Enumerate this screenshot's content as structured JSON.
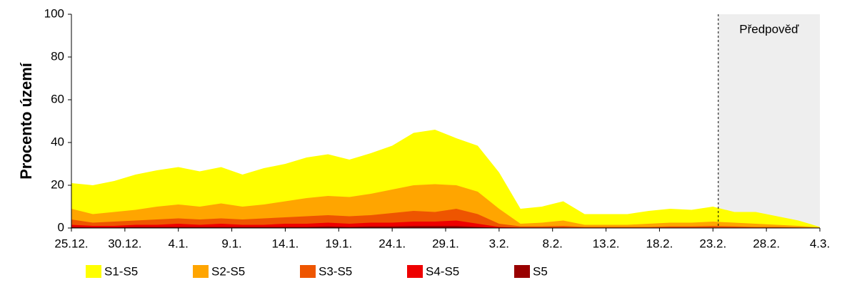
{
  "chart_data": {
    "type": "area",
    "ylabel": "Procento území",
    "forecast_label": "Předpověď",
    "forecast_start": 60.5,
    "xlim": [
      0,
      70
    ],
    "ylim": [
      0,
      100
    ],
    "yticks": [
      0,
      20,
      40,
      60,
      80,
      100
    ],
    "xticks": [
      {
        "value": 0,
        "label": "25.12."
      },
      {
        "value": 5,
        "label": "30.12."
      },
      {
        "value": 10,
        "label": "4.1."
      },
      {
        "value": 15,
        "label": "9.1."
      },
      {
        "value": 20,
        "label": "14.1."
      },
      {
        "value": 25,
        "label": "19.1."
      },
      {
        "value": 30,
        "label": "24.1."
      },
      {
        "value": 35,
        "label": "29.1."
      },
      {
        "value": 40,
        "label": "3.2."
      },
      {
        "value": 45,
        "label": "8.2."
      },
      {
        "value": 50,
        "label": "13.2."
      },
      {
        "value": 55,
        "label": "18.2."
      },
      {
        "value": 60,
        "label": "23.2."
      },
      {
        "value": 65,
        "label": "28.2."
      },
      {
        "value": 70,
        "label": "4.3."
      }
    ],
    "x": [
      0,
      2,
      4,
      6,
      8,
      10,
      12,
      14,
      16,
      18,
      20,
      22,
      24,
      26,
      28,
      30,
      32,
      34,
      36,
      38,
      40,
      42,
      44,
      46,
      48,
      50,
      52,
      54,
      56,
      58,
      60,
      62,
      64,
      66,
      68,
      70
    ],
    "series": [
      {
        "name": "S1-S5",
        "color": "#ffff00",
        "values": [
          21,
          20,
          22,
          25,
          27,
          28.5,
          26.5,
          28.5,
          25,
          28,
          30,
          33,
          34.5,
          32,
          35,
          38.5,
          44.5,
          46,
          42,
          38.5,
          26,
          9,
          10,
          12.5,
          6.5,
          6.5,
          6.5,
          8,
          9,
          8.5,
          10,
          7.5,
          7.5,
          5.5,
          3.5,
          0.5
        ]
      },
      {
        "name": "S2-S5",
        "color": "#ffa500",
        "values": [
          9,
          6.5,
          7.5,
          8.5,
          10,
          11,
          10,
          11.5,
          10,
          11,
          12.5,
          14,
          15,
          14.5,
          16,
          18,
          20,
          20.5,
          20,
          17,
          9,
          2,
          2.5,
          3.5,
          1.5,
          1.5,
          1.5,
          2,
          2.5,
          2.5,
          3,
          2.5,
          2,
          1.5,
          1,
          0.3
        ]
      },
      {
        "name": "S3-S5",
        "color": "#ee5500",
        "values": [
          4,
          2.5,
          3,
          3.5,
          4,
          4.5,
          4,
          4.5,
          4,
          4.5,
          5,
          5.5,
          6,
          5.5,
          6,
          7,
          8,
          7.5,
          9,
          6.5,
          2,
          0.8,
          0.8,
          1,
          0.5,
          0.5,
          0.5,
          0.5,
          0.8,
          0.8,
          1,
          0.8,
          0.5,
          0.5,
          0.3,
          0.1
        ]
      },
      {
        "name": "S4-S5",
        "color": "#ee0000",
        "values": [
          1.5,
          1,
          1,
          1.5,
          1.5,
          2,
          1.5,
          2,
          1.5,
          1.5,
          2,
          2,
          2.5,
          2,
          2.5,
          2.5,
          3,
          3,
          3.5,
          2,
          0.5,
          0.2,
          0.2,
          0.2,
          0.1,
          0.1,
          0.1,
          0.1,
          0.2,
          0.2,
          0.2,
          0.2,
          0.1,
          0.1,
          0.1,
          0
        ]
      },
      {
        "name": "S5",
        "color": "#990000",
        "values": [
          0.5,
          0.3,
          0.3,
          0.5,
          0.5,
          0.5,
          0.5,
          0.5,
          0.5,
          0.5,
          0.5,
          0.5,
          0.8,
          0.5,
          0.8,
          0.8,
          1,
          1,
          1,
          0.5,
          0.1,
          0,
          0,
          0,
          0,
          0,
          0,
          0,
          0,
          0,
          0,
          0,
          0,
          0,
          0,
          0
        ]
      }
    ]
  }
}
